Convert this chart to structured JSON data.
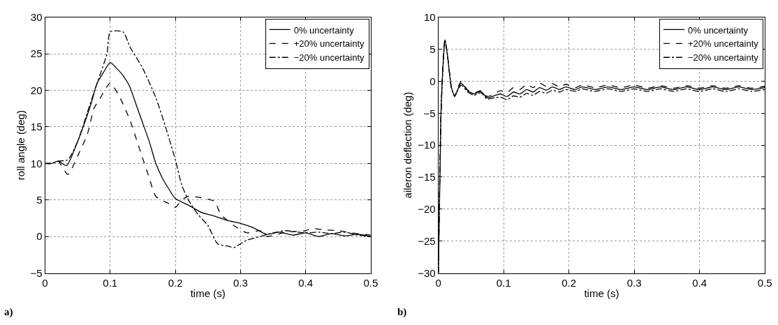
{
  "chart_data": [
    {
      "type": "line",
      "xlabel": "time (s)",
      "ylabel": "roll angle (deg)",
      "xlim": [
        0,
        0.5
      ],
      "ylim": [
        -5,
        30
      ],
      "xticks": [
        0,
        0.1,
        0.2,
        0.3,
        0.4,
        0.5
      ],
      "yticks": [
        -5,
        0,
        5,
        10,
        15,
        20,
        25,
        30
      ],
      "grid": true,
      "legend": "top right",
      "marker": "none",
      "annotations": [
        "a)"
      ],
      "series": [
        {
          "name": "0% uncertainty",
          "color": "#000000",
          "line_style": "solid",
          "x": [
            0,
            0.01,
            0.02,
            0.033,
            0.05,
            0.07,
            0.08,
            0.09,
            0.1,
            0.11,
            0.12,
            0.13,
            0.14,
            0.15,
            0.16,
            0.17,
            0.18,
            0.19,
            0.2,
            0.22,
            0.24,
            0.26,
            0.28,
            0.3,
            0.32,
            0.34,
            0.36,
            0.38,
            0.4,
            0.42,
            0.44,
            0.46,
            0.48,
            0.5
          ],
          "values": [
            10,
            10,
            10.3,
            9.7,
            13,
            18,
            21,
            22.5,
            23.8,
            23,
            22,
            20.5,
            18,
            15.5,
            13,
            10,
            8,
            6.5,
            5.2,
            4.3,
            3.3,
            2.8,
            2.2,
            1.8,
            1.2,
            0.3,
            0.6,
            0.2,
            0.5,
            0,
            0.4,
            0.1,
            0.3,
            0
          ]
        },
        {
          "name": "+20% uncertainty",
          "color": "#000000",
          "line_style": "dashed",
          "x": [
            0,
            0.01,
            0.02,
            0.035,
            0.05,
            0.065,
            0.075,
            0.085,
            0.1,
            0.115,
            0.13,
            0.145,
            0.16,
            0.17,
            0.19,
            0.2,
            0.21,
            0.22,
            0.24,
            0.26,
            0.27,
            0.29,
            0.31,
            0.33,
            0.34,
            0.37,
            0.4,
            0.41,
            0.43,
            0.45,
            0.47,
            0.5
          ],
          "values": [
            10,
            10,
            10.3,
            8.5,
            11,
            14,
            17.5,
            19,
            21,
            19,
            16,
            12,
            8,
            5.5,
            4.5,
            4,
            5,
            5.5,
            5.3,
            4.8,
            3,
            1.5,
            0.5,
            0.8,
            0,
            0.6,
            0.8,
            1.1,
            0.9,
            0.8,
            0.5,
            0.2
          ]
        },
        {
          "name": "−20% uncertainty",
          "color": "#000000",
          "line_style": "dashdot",
          "x": [
            0,
            0.01,
            0.02,
            0.035,
            0.05,
            0.065,
            0.08,
            0.095,
            0.1,
            0.12,
            0.13,
            0.15,
            0.17,
            0.185,
            0.2,
            0.21,
            0.22,
            0.235,
            0.25,
            0.265,
            0.28,
            0.29,
            0.3,
            0.31,
            0.33,
            0.35,
            0.37,
            0.4,
            0.42,
            0.44,
            0.46,
            0.48,
            0.5
          ],
          "values": [
            10,
            10,
            10.3,
            10.5,
            13,
            17,
            21,
            25,
            28,
            28,
            26,
            23,
            19,
            15,
            10.5,
            7,
            5,
            3,
            1.5,
            -1,
            -1.3,
            -1.5,
            -1,
            -0.5,
            0,
            0.5,
            0.8,
            0.5,
            0.6,
            0.4,
            0.6,
            0.2,
            0
          ]
        }
      ]
    },
    {
      "type": "line",
      "xlabel": "time (s)",
      "ylabel": "aileron deflection (deg)",
      "xlim": [
        0,
        0.5
      ],
      "ylim": [
        -30,
        10
      ],
      "xticks": [
        0,
        0.1,
        0.2,
        0.3,
        0.4,
        0.5
      ],
      "yticks": [
        -30,
        -25,
        -20,
        -15,
        -10,
        -5,
        0,
        5,
        10
      ],
      "grid": true,
      "legend": "top right",
      "marker": "none",
      "annotations": [
        "b)"
      ],
      "series": [
        {
          "name": "0% uncertainty",
          "color": "#000000",
          "line_style": "solid",
          "x": [
            0,
            0.004,
            0.008,
            0.01,
            0.014,
            0.02,
            0.025,
            0.03,
            0.035,
            0.045,
            0.055,
            0.065,
            0.075,
            0.085,
            0.095,
            0.105,
            0.115,
            0.125,
            0.135,
            0.145,
            0.155,
            0.165,
            0.175,
            0.185,
            0.195,
            0.21,
            0.22,
            0.24,
            0.26,
            0.28,
            0.3,
            0.32,
            0.34,
            0.36,
            0.38,
            0.4,
            0.42,
            0.44,
            0.46,
            0.48,
            0.5
          ],
          "values": [
            -30,
            -5,
            4,
            6.5,
            4,
            -1,
            -2.3,
            -1.2,
            -0.3,
            -1.5,
            -2,
            -1.6,
            -2.6,
            -2.3,
            -2,
            -2.4,
            -1.7,
            -2,
            -1.3,
            -1.7,
            -1,
            -1.4,
            -0.9,
            -1.3,
            -0.9,
            -1.3,
            -0.9,
            -1.3,
            -0.9,
            -1.3,
            -0.9,
            -1.3,
            -0.9,
            -1.3,
            -0.9,
            -1.3,
            -0.9,
            -1.3,
            -0.9,
            -1.3,
            -1
          ]
        },
        {
          "name": "+20% uncertainty",
          "color": "#000000",
          "line_style": "dashed",
          "x": [
            0,
            0.004,
            0.008,
            0.01,
            0.014,
            0.02,
            0.025,
            0.03,
            0.035,
            0.045,
            0.055,
            0.065,
            0.075,
            0.085,
            0.095,
            0.105,
            0.115,
            0.125,
            0.135,
            0.145,
            0.155,
            0.165,
            0.175,
            0.185,
            0.195,
            0.21,
            0.22,
            0.24,
            0.26,
            0.28,
            0.3,
            0.32,
            0.34,
            0.36,
            0.38,
            0.4,
            0.42,
            0.44,
            0.46,
            0.48,
            0.5
          ],
          "values": [
            -30,
            -5,
            4,
            6.5,
            4,
            -1,
            -2.3,
            -1,
            0,
            -1.4,
            -1.8,
            -1.5,
            -2.4,
            -2,
            -1.5,
            -1.8,
            -1,
            -1.3,
            -0.5,
            -1,
            -0.3,
            -0.8,
            -0.4,
            -0.9,
            -0.5,
            -1,
            -0.6,
            -1,
            -0.6,
            -1,
            -0.6,
            -1.1,
            -0.7,
            -1.1,
            -0.7,
            -1.1,
            -0.7,
            -1.1,
            -0.7,
            -1.1,
            -0.8
          ]
        },
        {
          "name": "−20% uncertainty",
          "color": "#000000",
          "line_style": "dashdot",
          "x": [
            0,
            0.004,
            0.008,
            0.01,
            0.014,
            0.02,
            0.025,
            0.03,
            0.035,
            0.045,
            0.055,
            0.065,
            0.075,
            0.085,
            0.095,
            0.105,
            0.115,
            0.125,
            0.135,
            0.145,
            0.155,
            0.165,
            0.175,
            0.185,
            0.195,
            0.21,
            0.22,
            0.24,
            0.26,
            0.28,
            0.3,
            0.32,
            0.34,
            0.36,
            0.38,
            0.4,
            0.42,
            0.44,
            0.46,
            0.48,
            0.5
          ],
          "values": [
            -30,
            -5,
            4,
            6.5,
            4,
            -1,
            -2.4,
            -1.4,
            -0.6,
            -1.7,
            -2.2,
            -1.8,
            -2.8,
            -2.6,
            -2.5,
            -2.9,
            -2.3,
            -2.5,
            -1.9,
            -2.2,
            -1.6,
            -1.9,
            -1.4,
            -1.7,
            -1.3,
            -1.6,
            -1.2,
            -1.6,
            -1.2,
            -1.6,
            -1.2,
            -1.6,
            -1.2,
            -1.6,
            -1.2,
            -1.6,
            -1.2,
            -1.6,
            -1.2,
            -1.6,
            -1.3
          ]
        }
      ]
    }
  ]
}
